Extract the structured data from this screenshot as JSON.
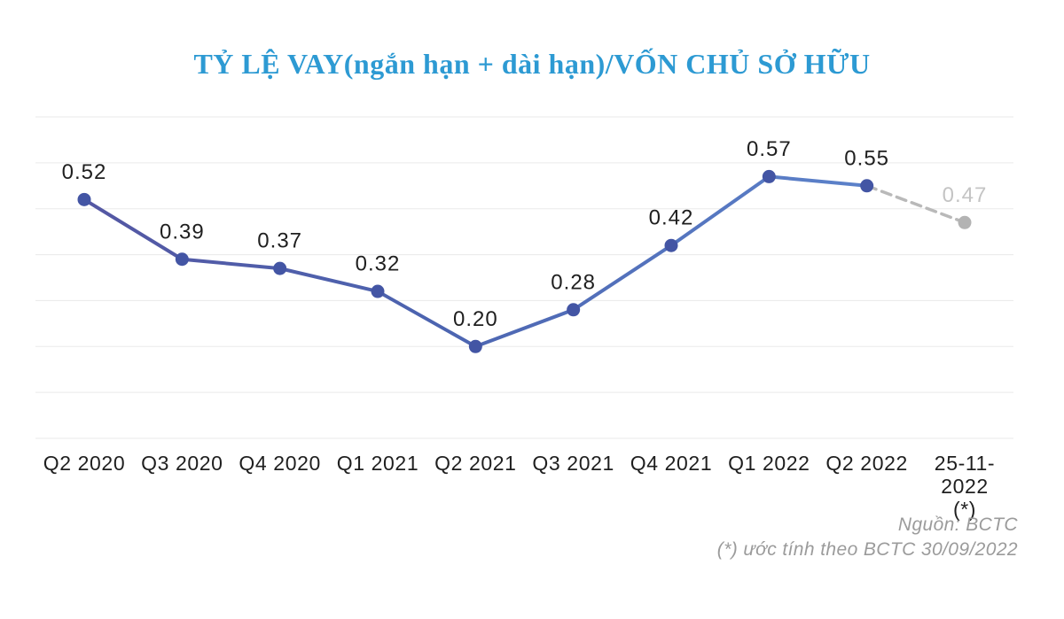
{
  "title": "TỶ LỆ VAY(ngắn hạn + dài hạn)/VỐN CHỦ SỞ HỮU",
  "footer": {
    "source": "Nguồn: BCTC",
    "note": "(*) ước tính theo BCTC 30/09/2022"
  },
  "colors": {
    "title": "#2d9ad3",
    "line_start": "#5457a3",
    "line_mid": "#4c64b0",
    "line_end": "#5c82ca",
    "marker": "#4355a4",
    "estimate_line": "#b9b9b9",
    "estimate_marker": "#b3b3b3",
    "estimate_label": "#c4c4c4",
    "grid": "#eaeaea",
    "label": "#1f1f1f",
    "axis_label": "#1f1f1f",
    "footer_text": "#9b9b9b"
  },
  "chart_data": {
    "type": "line",
    "title": "TỶ LỆ VAY(ngắn hạn + dài hạn)/VỐN CHỦ SỞ HỮU",
    "categories": [
      "Q2 2020",
      "Q3 2020",
      "Q4 2020",
      "Q1 2021",
      "Q2 2021",
      "Q3 2021",
      "Q4 2021",
      "Q1 2022",
      "Q2 2022",
      "25-11-2022\n(*)"
    ],
    "values": [
      0.52,
      0.39,
      0.37,
      0.32,
      0.2,
      0.28,
      0.42,
      0.57,
      0.55,
      0.47
    ],
    "labels": [
      "0.52",
      "0.39",
      "0.37",
      "0.32",
      "0.20",
      "0.28",
      "0.42",
      "0.57",
      "0.55",
      "0.47"
    ],
    "estimated_index": 9,
    "xlabel": "",
    "ylabel": "",
    "ylim": [
      0,
      0.7
    ],
    "grid_step": 0.1,
    "grid": true,
    "legend": "none",
    "annotations": [
      "last point is an estimate drawn with gray dashed line"
    ]
  }
}
